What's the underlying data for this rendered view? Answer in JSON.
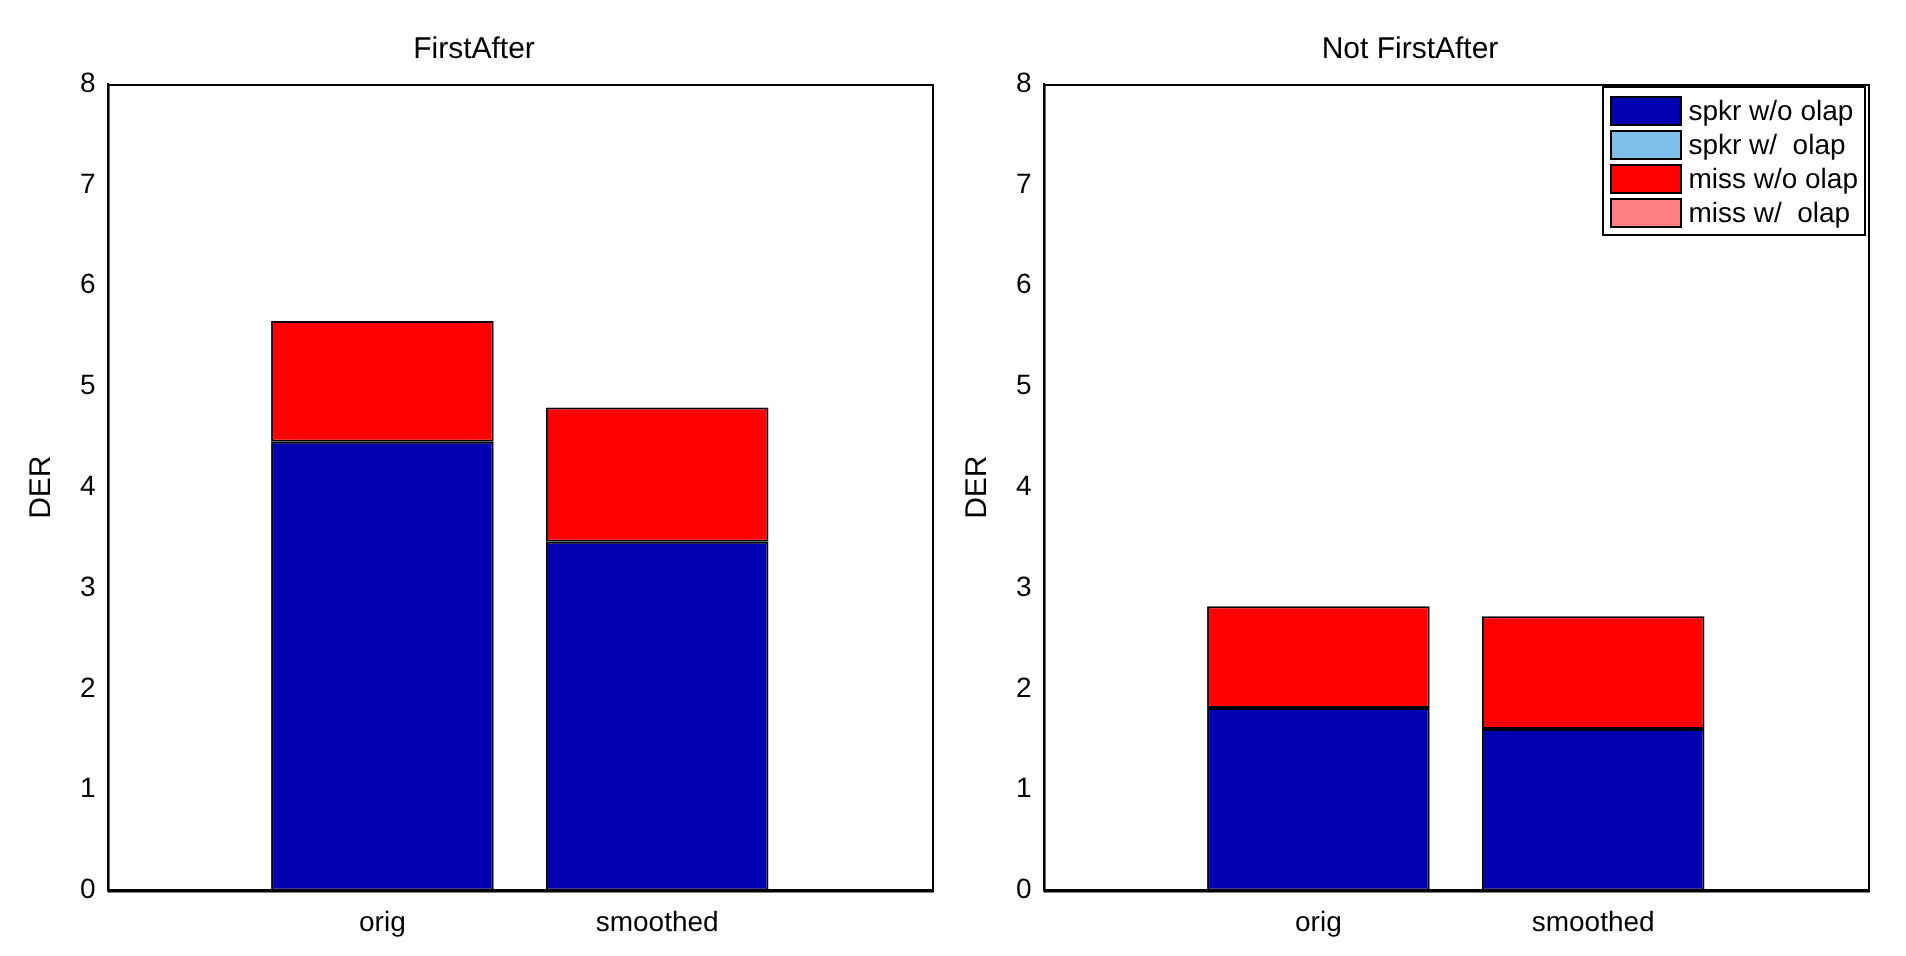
{
  "chart_data": [
    {
      "type": "bar",
      "title": "FirstAfter",
      "ylabel": "DER",
      "categories": [
        "orig",
        "smoothed"
      ],
      "stacked": true,
      "ylim": [
        0,
        8
      ],
      "yticks": [
        0,
        1,
        2,
        3,
        4,
        5,
        6,
        7,
        8
      ],
      "grid": false,
      "legend": false,
      "series": [
        {
          "color": "#0000b0",
          "values": [
            4.45,
            3.46
          ]
        },
        {
          "color": "#7fbfea",
          "values": [
            0,
            0
          ]
        },
        {
          "color": "#ff0000",
          "values": [
            1.2,
            1.33
          ]
        },
        {
          "color": "#ff8080",
          "values": [
            0,
            0
          ]
        }
      ]
    },
    {
      "type": "bar",
      "title": "Not FirstAfter",
      "ylabel": "DER",
      "categories": [
        "orig",
        "smoothed"
      ],
      "stacked": true,
      "ylim": [
        0,
        8
      ],
      "yticks": [
        0,
        1,
        2,
        3,
        4,
        5,
        6,
        7,
        8
      ],
      "grid": false,
      "legend": "top right",
      "series": [
        {
          "name": "spkr w/o olap",
          "color": "#0000b0",
          "values": [
            1.81,
            1.6
          ]
        },
        {
          "name": "spkr w/  olap",
          "color": "#7fbfea",
          "values": [
            0,
            0
          ]
        },
        {
          "name": "miss w/o olap",
          "color": "#ff0000",
          "values": [
            1.01,
            1.12
          ]
        },
        {
          "name": "miss w/  olap",
          "color": "#ff8080",
          "values": [
            0,
            0
          ]
        }
      ]
    }
  ]
}
